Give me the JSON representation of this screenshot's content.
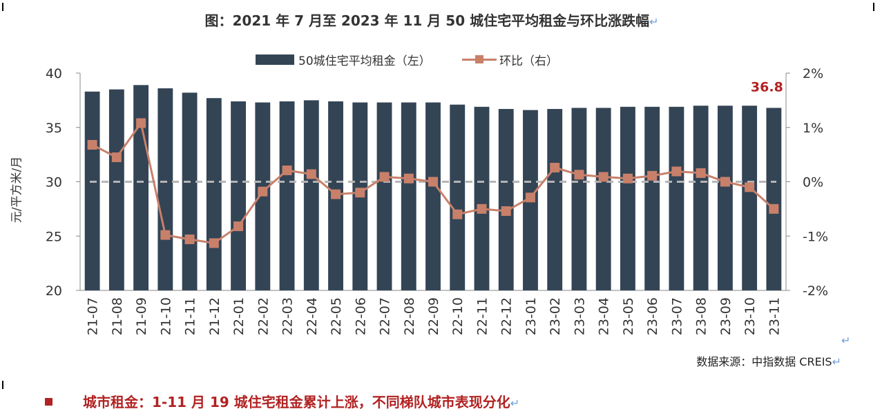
{
  "title": "图：2021 年 7 月至 2023 年 11 月 50 城住宅平均租金与环比涨跌幅",
  "return_mark": "↵",
  "legend": {
    "bar_label": "50城住宅平均租金（左）",
    "line_label": "环比（右）"
  },
  "source": "数据来源：中指数据 CREIS",
  "section_heading": "城市租金：1-11 月 19 城住宅租金累计上涨，不同梯队城市表现分化",
  "colors": {
    "bar": "#334455",
    "line": "#c8806a",
    "accent_red": "#b22222",
    "zero_line": "#b5b5b5"
  },
  "chart_data": {
    "type": "bar",
    "title": "图：2021 年 7 月至 2023 年 11 月 50 城住宅平均租金与环比涨跌幅",
    "ylabel": "元/平方米/月",
    "y2label": "",
    "categories": [
      "21-07",
      "21-08",
      "21-09",
      "21-10",
      "21-11",
      "21-12",
      "22-01",
      "22-02",
      "22-03",
      "22-04",
      "22-05",
      "22-06",
      "22-07",
      "22-08",
      "22-09",
      "22-10",
      "22-11",
      "22-12",
      "23-01",
      "23-02",
      "23-03",
      "23-04",
      "23-05",
      "23-06",
      "23-07",
      "23-08",
      "23-09",
      "23-10",
      "23-11"
    ],
    "ylim": [
      20,
      40
    ],
    "yticks": [
      20,
      25,
      30,
      35,
      40
    ],
    "y2lim": [
      -2,
      2
    ],
    "y2ticks": [
      "-2%",
      "-1%",
      "0%",
      "1%",
      "2%"
    ],
    "series": [
      {
        "name": "50城住宅平均租金（左）",
        "type": "bar",
        "axis": "left",
        "values": [
          38.3,
          38.5,
          38.9,
          38.6,
          38.2,
          37.7,
          37.4,
          37.3,
          37.4,
          37.5,
          37.4,
          37.3,
          37.3,
          37.3,
          37.3,
          37.1,
          36.9,
          36.7,
          36.6,
          36.7,
          36.8,
          36.8,
          36.9,
          36.9,
          36.9,
          37.0,
          37.0,
          37.0,
          36.8
        ]
      },
      {
        "name": "环比（右）",
        "type": "line",
        "axis": "right",
        "values": [
          0.68,
          0.45,
          1.08,
          -0.98,
          -1.06,
          -1.13,
          -0.82,
          -0.18,
          0.21,
          0.14,
          -0.23,
          -0.2,
          0.09,
          0.06,
          0.0,
          -0.6,
          -0.5,
          -0.54,
          -0.29,
          0.26,
          0.13,
          0.09,
          0.06,
          0.11,
          0.19,
          0.16,
          0.0,
          -0.1,
          -0.5
        ]
      }
    ],
    "annotation": "36.8",
    "reference_line": 0,
    "grid": false,
    "legend_position": "top"
  }
}
